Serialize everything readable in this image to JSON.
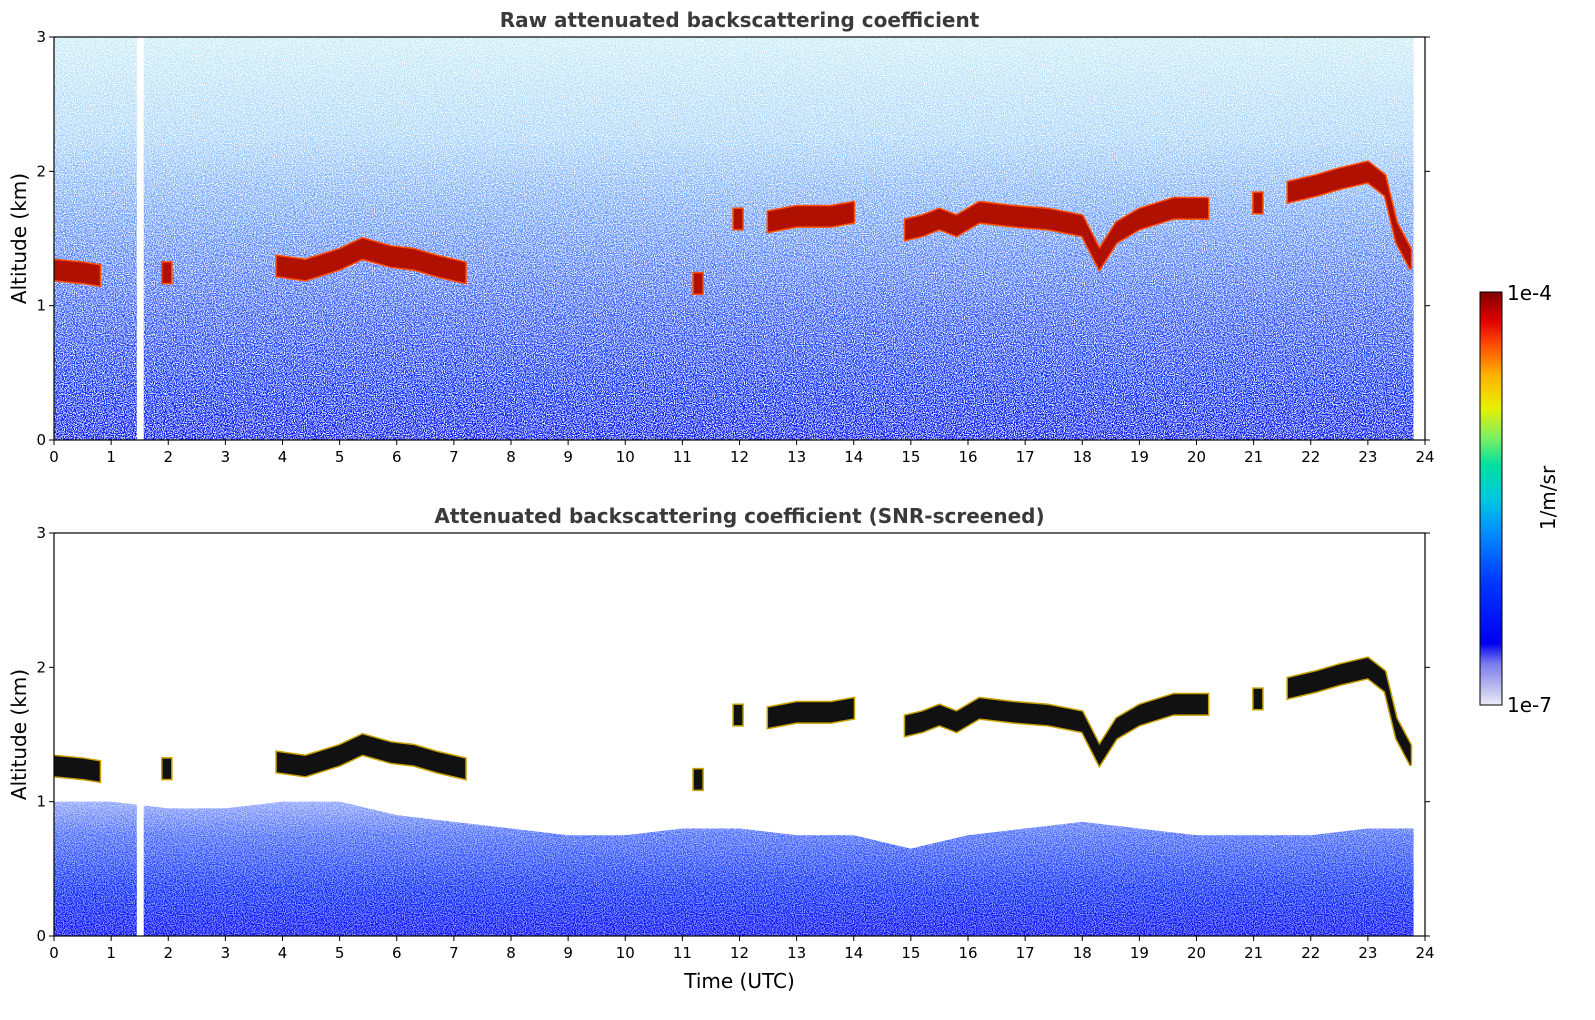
{
  "chart_data": [
    {
      "type": "heatmap",
      "title": "Raw attenuated backscattering coefficient",
      "xlabel": "",
      "ylabel": "Altitude (km)",
      "xlim": [
        0,
        24
      ],
      "ylim": [
        0,
        3
      ],
      "xticks": [
        "0",
        "1",
        "2",
        "3",
        "4",
        "5",
        "6",
        "7",
        "8",
        "9",
        "10",
        "11",
        "12",
        "13",
        "14",
        "15",
        "16",
        "17",
        "18",
        "19",
        "20",
        "21",
        "22",
        "23",
        "24"
      ],
      "yticks": [
        "0",
        "1",
        "2",
        "3"
      ],
      "data_gaps_hours": [
        [
          1.45,
          1.57
        ],
        [
          23.8,
          24.0
        ]
      ],
      "cloud_base_km": [
        [
          0.0,
          1.22
        ],
        [
          0.5,
          1.2
        ],
        [
          0.8,
          1.18
        ],
        [
          1.0,
          null
        ],
        [
          1.9,
          1.2
        ],
        [
          2.1,
          null
        ],
        [
          3.9,
          1.25
        ],
        [
          4.4,
          1.22
        ],
        [
          5.0,
          1.3
        ],
        [
          5.4,
          1.38
        ],
        [
          5.9,
          1.32
        ],
        [
          6.3,
          1.3
        ],
        [
          6.7,
          1.25
        ],
        [
          7.2,
          1.2
        ],
        [
          7.3,
          null
        ],
        [
          11.2,
          1.12
        ],
        [
          11.3,
          null
        ],
        [
          11.9,
          1.6
        ],
        [
          12.1,
          null
        ],
        [
          12.5,
          1.58
        ],
        [
          13.0,
          1.62
        ],
        [
          13.6,
          1.62
        ],
        [
          14.0,
          1.65
        ],
        [
          14.4,
          null
        ],
        [
          14.9,
          1.52
        ],
        [
          15.2,
          1.55
        ],
        [
          15.5,
          1.6
        ],
        [
          15.8,
          1.55
        ],
        [
          16.2,
          1.65
        ],
        [
          16.8,
          1.62
        ],
        [
          17.4,
          1.6
        ],
        [
          18.0,
          1.55
        ],
        [
          18.3,
          1.3
        ],
        [
          18.6,
          1.5
        ],
        [
          19.0,
          1.6
        ],
        [
          19.6,
          1.68
        ],
        [
          20.2,
          1.68
        ],
        [
          20.7,
          null
        ],
        [
          21.0,
          1.72
        ],
        [
          21.2,
          null
        ],
        [
          21.6,
          1.8
        ],
        [
          22.1,
          1.85
        ],
        [
          22.5,
          1.9
        ],
        [
          23.0,
          1.95
        ],
        [
          23.3,
          1.85
        ],
        [
          23.5,
          1.5
        ],
        [
          23.75,
          1.3
        ]
      ]
    },
    {
      "type": "heatmap",
      "title": "Attenuated backscattering coefficient (SNR-screened)",
      "xlabel": "Time (UTC)",
      "ylabel": "Altitude (km)",
      "xlim": [
        0,
        24
      ],
      "ylim": [
        0,
        3
      ],
      "xticks": [
        "0",
        "1",
        "2",
        "3",
        "4",
        "5",
        "6",
        "7",
        "8",
        "9",
        "10",
        "11",
        "12",
        "13",
        "14",
        "15",
        "16",
        "17",
        "18",
        "19",
        "20",
        "21",
        "22",
        "23",
        "24"
      ],
      "yticks": [
        "0",
        "1",
        "2",
        "3"
      ],
      "data_gaps_hours": [
        [
          1.45,
          1.57
        ],
        [
          23.8,
          24.0
        ]
      ],
      "aerosol_top_km": [
        [
          0.0,
          1.0
        ],
        [
          1.0,
          1.0
        ],
        [
          2.0,
          0.95
        ],
        [
          3.0,
          0.95
        ],
        [
          4.0,
          1.0
        ],
        [
          5.0,
          1.0
        ],
        [
          6.0,
          0.9
        ],
        [
          7.0,
          0.85
        ],
        [
          8.0,
          0.8
        ],
        [
          9.0,
          0.75
        ],
        [
          10.0,
          0.75
        ],
        [
          11.0,
          0.8
        ],
        [
          12.0,
          0.8
        ],
        [
          13.0,
          0.75
        ],
        [
          14.0,
          0.75
        ],
        [
          15.0,
          0.65
        ],
        [
          16.0,
          0.75
        ],
        [
          17.0,
          0.8
        ],
        [
          18.0,
          0.85
        ],
        [
          19.0,
          0.8
        ],
        [
          20.0,
          0.75
        ],
        [
          21.0,
          0.75
        ],
        [
          22.0,
          0.75
        ],
        [
          23.0,
          0.8
        ],
        [
          24.0,
          0.8
        ]
      ]
    }
  ],
  "colorbar": {
    "label": "1/m/sr",
    "max_label": "1e-4",
    "min_label": "1e-7",
    "colormap": [
      "#ececf8",
      "#b4b4ee",
      "#7a7aee",
      "#0000f0",
      "#0038ff",
      "#0090ff",
      "#00c8e0",
      "#00e0a0",
      "#80f060",
      "#e8f000",
      "#ffb000",
      "#ff5000",
      "#e00000",
      "#800000"
    ]
  }
}
